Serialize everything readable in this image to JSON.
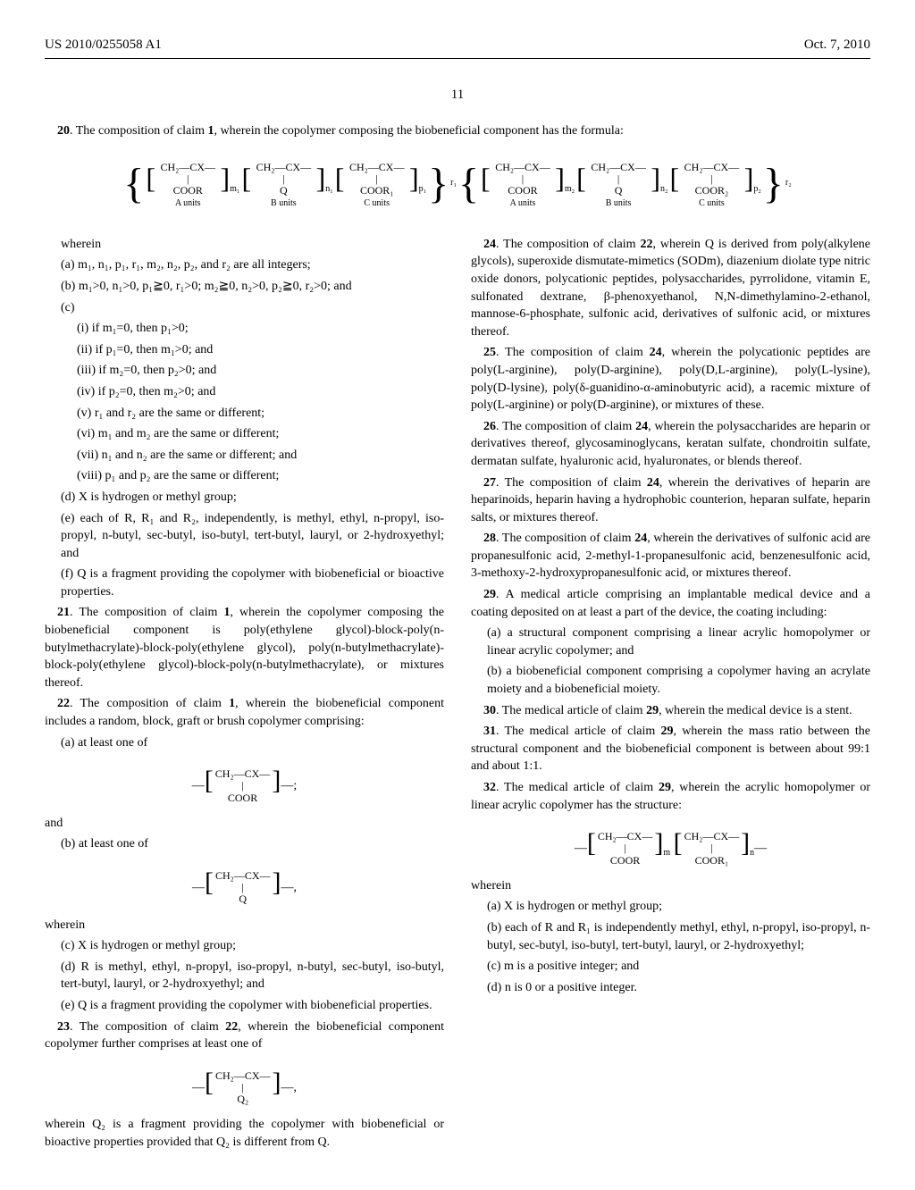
{
  "header": {
    "pub_number": "US 2010/0255058 A1",
    "date": "Oct. 7, 2010"
  },
  "page_number": "11",
  "claim20": {
    "num": "20",
    "text": ". The composition of claim ",
    "ref": "1",
    "rest": ", wherein the copolymer composing the biobeneficial component has the formula:"
  },
  "wherein": "wherein",
  "c20a": "(a) m₁, n₁, p₁, r₁, m₂, n₂, p₂, and r₂ are all integers;",
  "c20b": "(b) m₁>0, n₁>0, p₁≧0, r₁>0; m₂≧0, n₂>0, p₂≧0, r₂>0; and",
  "c20c": "(c)",
  "c20c1": "(i) if m₁=0, then p₁>0;",
  "c20c2": "(ii) if p₁=0, then m₁>0; and",
  "c20c3": "(iii) if m₂=0, then p₂>0; and",
  "c20c4": "(iv) if p₂=0, then m₂>0; and",
  "c20c5": "(v) r₁ and r₂ are the same or different;",
  "c20c6": "(vi) m₁ and m₂ are the same or different;",
  "c20c7": "(vii) n₁ and n₂ are the same or different; and",
  "c20c8": "(viii) p₁ and p₂ are the same or different;",
  "c20d": "(d) X is hydrogen or methyl group;",
  "c20e": "(e) each of R, R₁ and R₂, independently, is methyl, ethyl, n-propyl, iso-propyl, n-butyl, sec-butyl, iso-butyl, tert-butyl, lauryl, or 2-hydroxyethyl; and",
  "c20f": "(f) Q is a fragment providing the copolymer with biobeneficial or bioactive properties.",
  "claim21": {
    "num": "21",
    "text": ". The composition of claim ",
    "ref": "1",
    "rest": ", wherein the copolymer composing the biobeneficial component is poly(ethylene glycol)-block-poly(n-butylmethacrylate)-block-poly(ethylene glycol), poly(n-butylmethacrylate)-block-poly(ethylene glycol)-block-poly(n-butylmethacrylate), or mixtures thereof."
  },
  "claim22": {
    "num": "22",
    "text": ". The composition of claim ",
    "ref": "1",
    "rest": ", wherein the biobeneficial component includes a random, block, graft or brush copolymer comprising:"
  },
  "c22a": "(a) at least one of",
  "and": "and",
  "c22b": "(b) at least one of",
  "c22c": "(c) X is hydrogen or methyl group;",
  "c22d": "(d) R is methyl, ethyl, n-propyl, iso-propyl, n-butyl, sec-butyl, iso-butyl, tert-butyl, lauryl, or 2-hydroxyethyl; and",
  "c22e": "(e) Q is a fragment providing the copolymer with biobeneficial properties.",
  "claim23": {
    "num": "23",
    "text": ". The composition of claim ",
    "ref": "22",
    "rest": ", wherein the biobeneficial component copolymer further comprises at least one of"
  },
  "c23w": "wherein Q₂ is a fragment providing the copolymer with biobeneficial or bioactive properties provided that Q₂ is different from Q.",
  "claim24": {
    "num": "24",
    "text": ". The composition of claim ",
    "ref": "22",
    "rest": ", wherein Q is derived from poly(alkylene glycols), superoxide dismutate-mimetics (SODm), diazenium diolate type nitric oxide donors, polycationic peptides, polysaccharides, pyrrolidone, vitamin E, sulfonated dextrane, β-phenoxyethanol, N,N-dimethylamino-2-ethanol, mannose-6-phosphate, sulfonic acid, derivatives of sulfonic acid, or mixtures thereof."
  },
  "claim25": {
    "num": "25",
    "text": ". The composition of claim ",
    "ref": "24",
    "rest": ", wherein the polycationic peptides are poly(L-arginine), poly(D-arginine), poly(D,L-arginine), poly(L-lysine), poly(D-lysine), poly(δ-guanidino-α-aminobutyric acid), a racemic mixture of poly(L-arginine) or poly(D-arginine), or mixtures of these."
  },
  "claim26": {
    "num": "26",
    "text": ". The composition of claim ",
    "ref": "24",
    "rest": ", wherein the polysaccharides are heparin or derivatives thereof, glycosaminoglycans, keratan sulfate, chondroitin sulfate, dermatan sulfate, hyaluronic acid, hyaluronates, or blends thereof."
  },
  "claim27": {
    "num": "27",
    "text": ". The composition of claim ",
    "ref": "24",
    "rest": ", wherein the derivatives of heparin are heparinoids, heparin having a hydrophobic counterion, heparan sulfate, heparin salts, or mixtures thereof."
  },
  "claim28": {
    "num": "28",
    "text": ". The composition of claim ",
    "ref": "24",
    "rest": ", wherein the derivatives of sulfonic acid are propanesulfonic acid, 2-methyl-1-propanesulfonic acid, benzenesulfonic acid, 3-methoxy-2-hydroxypropanesulfonic acid, or mixtures thereof."
  },
  "claim29": {
    "num": "29",
    "text": ". A medical article comprising an implantable medical device and a coating deposited on at least a part of the device, the coating including:"
  },
  "c29a": "(a) a structural component comprising a linear acrylic homopolymer or linear acrylic copolymer; and",
  "c29b": "(b) a biobeneficial component comprising a copolymer having an acrylate moiety and a biobeneficial moiety.",
  "claim30": {
    "num": "30",
    "text": ". The medical article of claim ",
    "ref": "29",
    "rest": ", wherein the medical device is a stent."
  },
  "claim31": {
    "num": "31",
    "text": ". The medical article of claim ",
    "ref": "29",
    "rest": ", wherein the mass ratio between the structural component and the biobeneficial component is between about 99:1 and about 1:1."
  },
  "claim32": {
    "num": "32",
    "text": ". The medical article of claim ",
    "ref": "29",
    "rest": ", wherein the acrylic homopolymer or linear acrylic copolymer has the structure:"
  },
  "c32a": "(a) X is hydrogen or methyl group;",
  "c32b": "(b) each of R and R₁ is independently methyl, ethyl, n-propyl, iso-propyl, n-butyl, sec-butyl, iso-butyl, tert-butyl, lauryl, or 2-hydroxyethyl;",
  "c32c": "(c) m is a positive integer; and",
  "c32d": "(d) n is 0 or a positive integer.",
  "formula_wide": {
    "units": [
      {
        "top": "CH₂—CX—",
        "mid": "|",
        "bot": "COOR",
        "sub": "m₁",
        "label": "A units"
      },
      {
        "top": "CH₂—CX—",
        "mid": "|",
        "bot": "Q",
        "sub": "n₁",
        "label": "B units"
      },
      {
        "top": "CH₂—CX—",
        "mid": "|",
        "bot": "COOR₁",
        "sub": "p₁",
        "label": "C units"
      },
      {
        "top": "CH₂—CX—",
        "mid": "|",
        "bot": "COOR",
        "sub": "m₂",
        "label": "A units"
      },
      {
        "top": "CH₂—CX—",
        "mid": "|",
        "bot": "Q",
        "sub": "n₂",
        "label": "B units"
      },
      {
        "top": "CH₂—CX—",
        "mid": "|",
        "bot": "COOR₂",
        "sub": "p₂",
        "label": "C units"
      }
    ],
    "outer_sub1": "r₁",
    "outer_sub2": "r₂"
  },
  "formula22a": {
    "top": "CH₂—CX—",
    "mid": "|",
    "bot": "COOR",
    "suffix": ";"
  },
  "formula22b": {
    "top": "CH₂—CX—",
    "mid": "|",
    "bot": "Q",
    "suffix": ","
  },
  "formula23": {
    "top": "CH₂—CX—",
    "mid": "|",
    "bot": "Q₂",
    "suffix": ","
  },
  "formula32": {
    "u1": {
      "top": "CH₂—CX—",
      "mid": "|",
      "bot": "COOR",
      "sub": "m"
    },
    "u2": {
      "top": "CH₂—CX—",
      "mid": "|",
      "bot": "COOR₁",
      "sub": "n"
    }
  }
}
